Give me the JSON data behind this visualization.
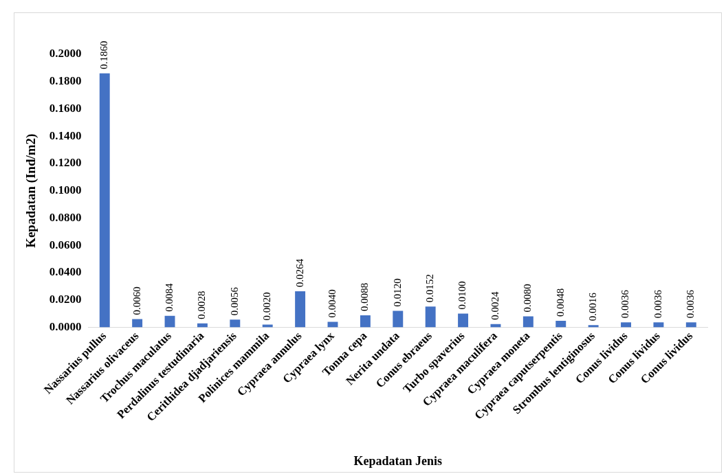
{
  "chart_data": {
    "type": "bar",
    "xlabel": "Kepadatan Jenis",
    "ylabel": "Kepadatan (Ind/m2)",
    "categories": [
      "Nassarius pullus",
      "Nassarius olivaceus",
      "Trochus maculatus",
      "Perdalinus testudinaria",
      "Cerithidea djadjariensis",
      "Polinices mammila",
      "Cypraea annulus",
      "Cypraea lynx",
      "Tonna cepa",
      "Nerita undata",
      "Conus ebraeus",
      "Turbo spaverius",
      "Cypraea maculifera",
      "Cypraea moneta",
      "Cypraea caputserpentis",
      "Strombus lentiginosus",
      "Conus lividus",
      "Conus lividus",
      "Conus lividus"
    ],
    "values": [
      0.186,
      0.006,
      0.0084,
      0.0028,
      0.0056,
      0.002,
      0.0264,
      0.004,
      0.0088,
      0.012,
      0.0152,
      0.01,
      0.0024,
      0.008,
      0.0048,
      0.0016,
      0.0036,
      0.0036,
      0.0036
    ],
    "value_labels": [
      "0.1860",
      "0.0060",
      "0.0084",
      "0.0028",
      "0.0056",
      "0.0020",
      "0.0264",
      "0.0040",
      "0.0088",
      "0.0120",
      "0.0152",
      "0.0100",
      "0.0024",
      "0.0080",
      "0.0048",
      "0.0016",
      "0.0036",
      "0.0036",
      "0.0036"
    ],
    "color": "#4472c4",
    "ylim": [
      0,
      0.2
    ],
    "yticks": [
      {
        "value": 0,
        "label": "0.0000"
      },
      {
        "value": 0.02,
        "label": "0.0200"
      },
      {
        "value": 0.04,
        "label": "0.0400"
      },
      {
        "value": 0.06,
        "label": "0.0600"
      },
      {
        "value": 0.08,
        "label": "0.0800"
      },
      {
        "value": 0.1,
        "label": "0.1000"
      },
      {
        "value": 0.12,
        "label": "0.1200"
      },
      {
        "value": 0.14,
        "label": "0.1400"
      },
      {
        "value": 0.16,
        "label": "0.1600"
      },
      {
        "value": 0.18,
        "label": "0.1800"
      },
      {
        "value": 0.2,
        "label": "0.2000"
      }
    ],
    "grid": false,
    "legend": false
  }
}
